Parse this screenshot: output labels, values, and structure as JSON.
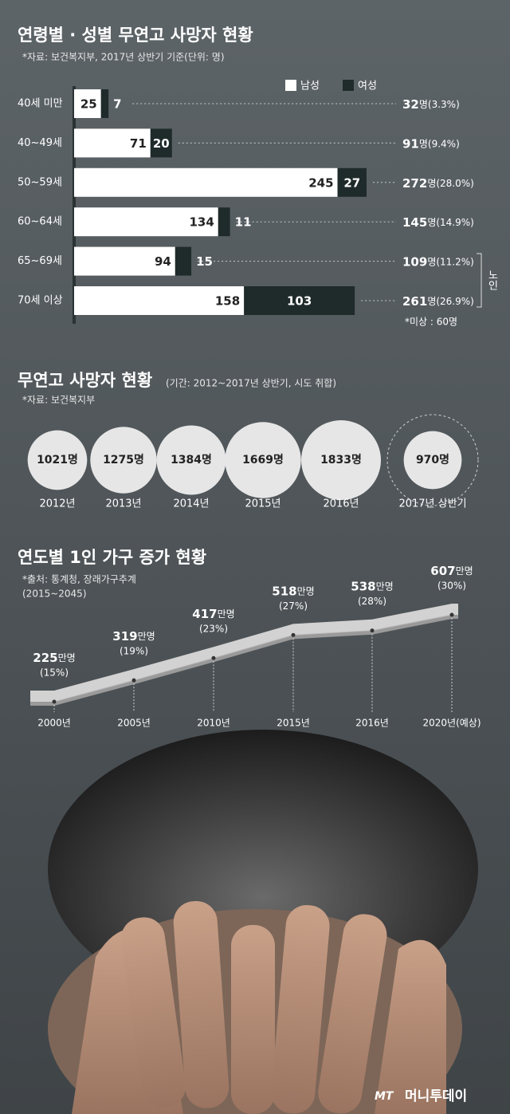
{
  "chart_data": [
    {
      "type": "stacked-bar",
      "title": "연령별 · 성별 무연고 사망자 현황",
      "subtitle": "*자료: 보건복지부, 2017년 상반기 기준(단위: 명)",
      "categories": [
        "40세 미만",
        "40~49세",
        "50~59세",
        "60~64세",
        "65~69세",
        "70세 이상"
      ],
      "series": [
        {
          "name": "남성",
          "color": "#ffffff",
          "values": [
            25,
            71,
            245,
            134,
            94,
            158
          ]
        },
        {
          "name": "여성",
          "color": "#1f2a2b",
          "values": [
            7,
            20,
            27,
            11,
            15,
            103
          ]
        }
      ],
      "totals": [
        32,
        91,
        272,
        145,
        109,
        261
      ],
      "total_suffixes": [
        "명(3.3%)",
        "명(9.4%)",
        "명(28.0%)",
        "명(14.9%)",
        "명(11.2%)",
        "명(26.9%)"
      ],
      "side_label": "노인",
      "footnote": "*미상 : 60명"
    },
    {
      "type": "bubble",
      "title": "무연고 사망자 현황",
      "subtitle": "(기간: 2012~2017년 상반기, 시도 취합)",
      "source": "*자료: 보건복지부",
      "categories": [
        "2012년",
        "2013년",
        "2014년",
        "2015년",
        "2016년",
        "2017년 상반기"
      ],
      "values": [
        1021,
        1275,
        1384,
        1669,
        1833,
        970
      ],
      "value_labels": [
        "1021명",
        "1275명",
        "1384명",
        "1669명",
        "1833명",
        "970명"
      ],
      "color": "#e6e6e6"
    },
    {
      "type": "line",
      "title": "연도별 1인 가구 증가 현황",
      "source": [
        "*출처: 통계청, 장래가구추계",
        "(2015~2045)"
      ],
      "categories": [
        "2000년",
        "2005년",
        "2010년",
        "2015년",
        "2016년",
        "2020년(예상)"
      ],
      "values": [
        225,
        319,
        417,
        518,
        538,
        607
      ],
      "unit": "만명",
      "shares": [
        "(15%)",
        "(19%)",
        "(23%)",
        "(27%)",
        "(28%)",
        "(30%)"
      ],
      "color": "#d2d2d2"
    }
  ],
  "credit": {
    "mark": "MT",
    "name": "머니투데이"
  }
}
